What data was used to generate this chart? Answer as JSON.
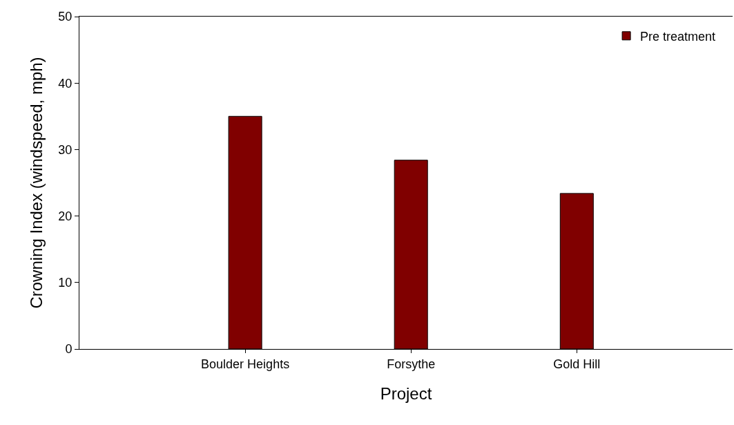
{
  "chart_data": {
    "type": "bar",
    "xlabel": "Project",
    "ylabel": "Crowning Index (windspeed, mph)",
    "categories": [
      "Boulder Heights",
      "Forsythe",
      "Gold Hill"
    ],
    "series": [
      {
        "name": "Pre treatment",
        "color": "#800000",
        "values": [
          35,
          28.4,
          23.4
        ]
      }
    ],
    "ylim": [
      0,
      50
    ],
    "yticks": [
      0,
      10,
      20,
      30,
      40,
      50
    ],
    "legend": "top right"
  }
}
